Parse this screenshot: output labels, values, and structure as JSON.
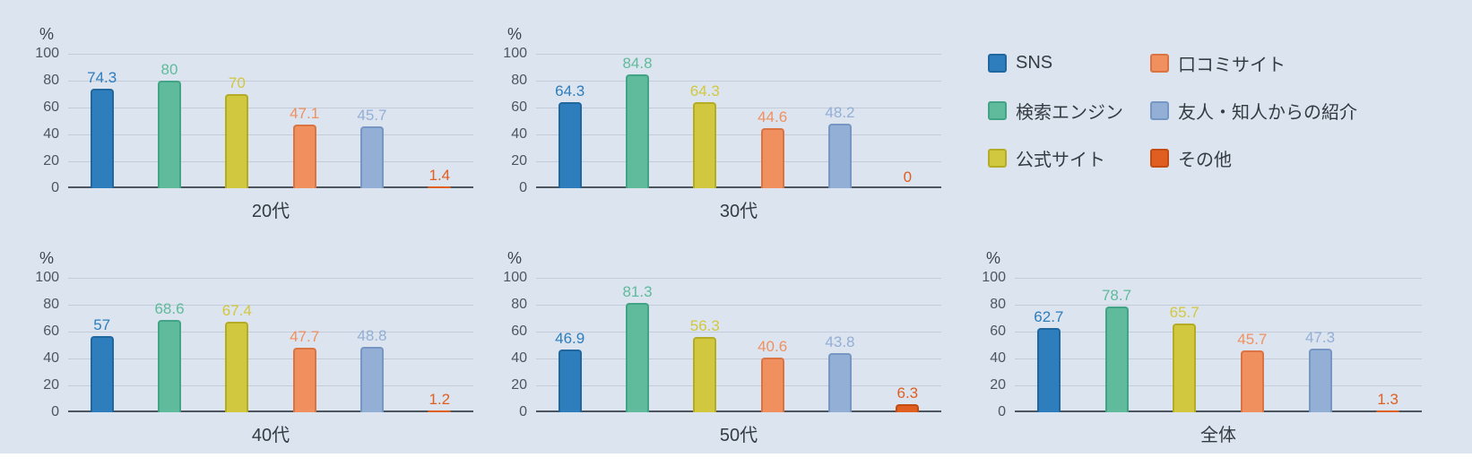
{
  "page": {
    "background": "#dce4ef",
    "unit_label": "%"
  },
  "chart_data": {
    "type": "bar",
    "unit": "%",
    "ylabel": "%",
    "ylim": [
      0,
      100
    ],
    "yticks": [
      0,
      20,
      40,
      60,
      80,
      100
    ],
    "grid": true,
    "legend_position": "top-right",
    "series": [
      {
        "name": "SNS",
        "color": "#2e7dbc",
        "border": "#20669f"
      },
      {
        "name": "検索エンジン",
        "color": "#5fbb9b",
        "border": "#41a484"
      },
      {
        "name": "公式サイト",
        "color": "#d2c83f",
        "border": "#b5ac25"
      },
      {
        "name": "口コミサイト",
        "color": "#f0905f",
        "border": "#da7442"
      },
      {
        "name": "友人・知人からの紹介",
        "color": "#93afd5",
        "border": "#7696c3"
      },
      {
        "name": "その他",
        "color": "#e05e20",
        "border": "#c24c11"
      }
    ],
    "charts": [
      {
        "title": "20代",
        "values": [
          74.3,
          80,
          70,
          47.1,
          45.7,
          1.4
        ]
      },
      {
        "title": "30代",
        "values": [
          64.3,
          84.8,
          64.3,
          44.6,
          48.2,
          0
        ]
      },
      {
        "title": "40代",
        "values": [
          57,
          68.6,
          67.4,
          47.7,
          48.8,
          1.2
        ]
      },
      {
        "title": "50代",
        "values": [
          46.9,
          81.3,
          56.3,
          40.6,
          43.8,
          6.3
        ]
      },
      {
        "title": "全体",
        "values": [
          62.7,
          78.7,
          65.7,
          45.7,
          47.3,
          1.3
        ]
      }
    ]
  }
}
